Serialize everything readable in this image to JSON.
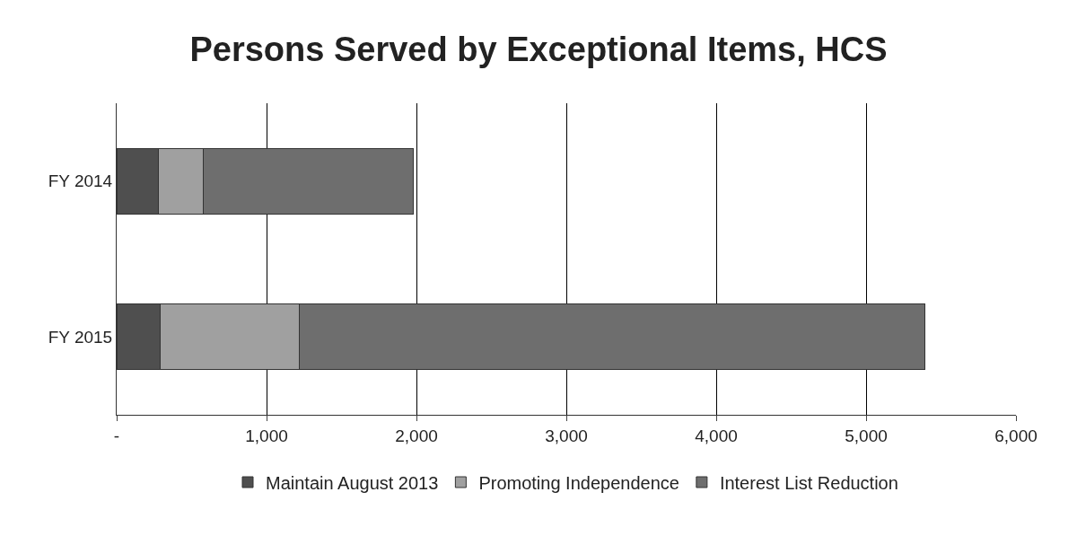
{
  "chart_data": {
    "type": "bar",
    "title": "Persons Served by Exceptional Items, HCS",
    "orientation": "horizontal",
    "stacked": true,
    "categories": [
      "FY 2014",
      "FY 2015"
    ],
    "series": [
      {
        "name": "Maintain August 2013",
        "color": "#4f4f4f",
        "values": [
          280,
          290
        ]
      },
      {
        "name": "Promoting Independence",
        "color": "#a0a0a0",
        "values": [
          300,
          930
        ]
      },
      {
        "name": "Interest List Reduction",
        "color": "#6e6e6e",
        "values": [
          1400,
          4170
        ]
      }
    ],
    "xlim": [
      0,
      6000
    ],
    "xticks": [
      {
        "value": 0,
        "label": "-"
      },
      {
        "value": 1000,
        "label": "1,000"
      },
      {
        "value": 2000,
        "label": "2,000"
      },
      {
        "value": 3000,
        "label": "3,000"
      },
      {
        "value": 4000,
        "label": "4,000"
      },
      {
        "value": 5000,
        "label": "5,000"
      },
      {
        "value": 6000,
        "label": "6,000"
      }
    ],
    "grid": "x",
    "legend": "bottom"
  }
}
